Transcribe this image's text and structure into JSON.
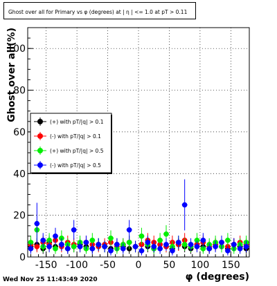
{
  "title": "Ghost over all for Primary vs φ (degrees) at | η | <= 1.0 at pT > 0.11",
  "footer": "Wed Nov 25 11:43:49 2020",
  "chart_data": {
    "type": "scatter",
    "xlabel": "φ (degrees)",
    "ylabel": "Ghost over all(%)",
    "xlim": [
      -180,
      180
    ],
    "ylim": [
      0,
      110
    ],
    "xticks": [
      -150,
      -100,
      -50,
      0,
      50,
      100,
      150
    ],
    "yticks": [
      0,
      20,
      40,
      60,
      80,
      100
    ],
    "grid": true,
    "legend_position": "middle-left",
    "series": [
      {
        "name": "(+) with pT/|q| > 0.1",
        "color": "#000000",
        "x": [
          -175,
          -165,
          -155,
          -145,
          -135,
          -125,
          -115,
          -105,
          -95,
          -85,
          -75,
          -65,
          -55,
          -45,
          -35,
          -25,
          -15,
          -5,
          5,
          15,
          25,
          35,
          45,
          55,
          65,
          75,
          85,
          95,
          105,
          115,
          125,
          135,
          145,
          155,
          165,
          175
        ],
        "y": [
          5,
          6,
          4,
          7,
          5,
          6,
          4,
          5,
          6,
          5,
          4,
          6,
          5,
          4,
          6,
          5,
          4,
          5,
          6,
          5,
          4,
          6,
          5,
          4,
          6,
          5,
          4,
          6,
          5,
          4,
          6,
          5,
          4,
          6,
          5,
          4
        ]
      },
      {
        "name": "(-) with pT/|q| > 0.1",
        "color": "#ff0000",
        "x": [
          -175,
          -165,
          -155,
          -145,
          -135,
          -125,
          -115,
          -105,
          -95,
          -85,
          -75,
          -65,
          -55,
          -45,
          -35,
          -25,
          -15,
          -5,
          5,
          15,
          25,
          35,
          45,
          55,
          65,
          75,
          85,
          95,
          105,
          115,
          125,
          135,
          145,
          155,
          165,
          175
        ],
        "y": [
          6,
          5,
          7,
          6,
          8,
          5,
          7,
          6,
          5,
          7,
          6,
          5,
          6,
          7,
          5,
          6,
          7,
          5,
          6,
          8,
          7,
          6,
          5,
          7,
          6,
          8,
          5,
          6,
          7,
          5,
          6,
          7,
          5,
          6,
          7,
          6
        ]
      },
      {
        "name": "(+) with pT/|q| > 0.5",
        "color": "#00ee00",
        "x": [
          -175,
          -165,
          -155,
          -145,
          -135,
          -125,
          -115,
          -105,
          -95,
          -85,
          -75,
          -65,
          -55,
          -45,
          -35,
          -25,
          -15,
          -5,
          5,
          15,
          25,
          35,
          45,
          55,
          65,
          75,
          85,
          95,
          105,
          115,
          125,
          135,
          145,
          155,
          165,
          175
        ],
        "y": [
          7,
          13,
          5,
          8,
          4,
          9,
          6,
          5,
          7,
          4,
          8,
          6,
          5,
          9,
          4,
          6,
          7,
          5,
          10,
          6,
          4,
          8,
          11,
          5,
          7,
          6,
          5,
          8,
          4,
          6,
          7,
          5,
          8,
          4,
          6,
          7
        ]
      },
      {
        "name": "(-) with pT/|q| > 0.5",
        "color": "#0000ff",
        "x": [
          -175,
          -165,
          -155,
          -145,
          -135,
          -125,
          -115,
          -105,
          -95,
          -85,
          -75,
          -65,
          -55,
          -45,
          -35,
          -25,
          -15,
          -5,
          5,
          15,
          25,
          35,
          45,
          55,
          65,
          75,
          85,
          95,
          105,
          115,
          125,
          135,
          145,
          155,
          165,
          175
        ],
        "y": [
          4,
          16,
          8,
          5,
          10,
          6,
          4,
          13,
          5,
          7,
          4,
          6,
          5,
          3,
          6,
          4,
          13,
          5,
          3,
          7,
          5,
          4,
          6,
          3,
          7,
          25,
          6,
          5,
          8,
          4,
          5,
          7,
          3,
          6,
          4,
          5
        ]
      }
    ]
  }
}
